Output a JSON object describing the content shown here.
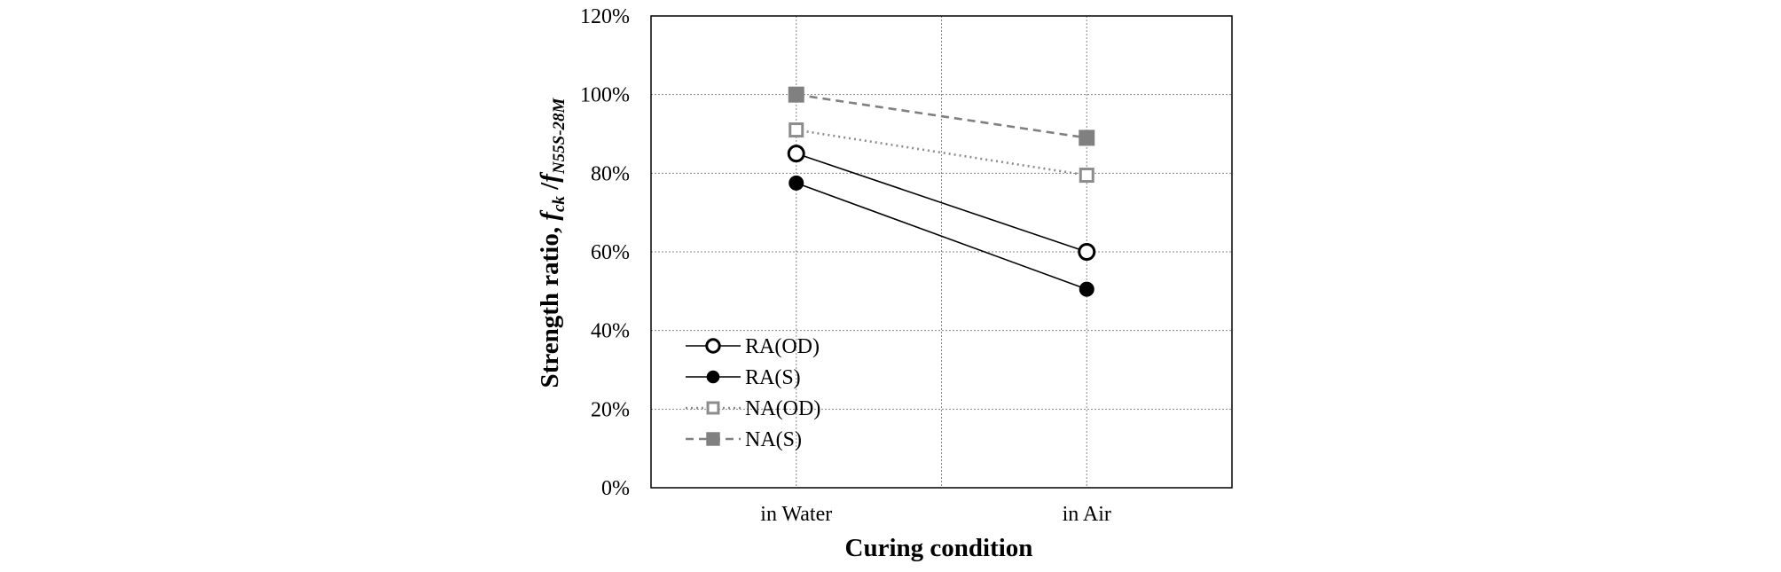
{
  "chart_data": {
    "type": "line",
    "categories": [
      "in Water",
      "in Air"
    ],
    "series": [
      {
        "name": "RA(OD)",
        "values": [
          0.85,
          0.6
        ],
        "color": "#000000",
        "marker": "circle-open",
        "line": "solid"
      },
      {
        "name": "RA(S)",
        "values": [
          0.775,
          0.505
        ],
        "color": "#000000",
        "marker": "circle-filled",
        "line": "solid"
      },
      {
        "name": "NA(OD)",
        "values": [
          0.91,
          0.795
        ],
        "color": "#8c8c8c",
        "marker": "square-open",
        "line": "dotted"
      },
      {
        "name": "NA(S)",
        "values": [
          1.0,
          0.89
        ],
        "color": "#808080",
        "marker": "square-filled",
        "line": "dashed"
      }
    ],
    "xlabel": "Curing condition",
    "ylabel": {
      "main": "Strength ratio, ",
      "f1": "f",
      "sub1": "ck",
      "sep": " /",
      "f2": "f",
      "sub2": "N55S-28M"
    },
    "ylim": [
      0,
      1.2
    ],
    "yticks": [
      "0%",
      "20%",
      "40%",
      "60%",
      "80%",
      "100%",
      "120%"
    ],
    "grid": true,
    "legend_position": "bottom-left"
  }
}
